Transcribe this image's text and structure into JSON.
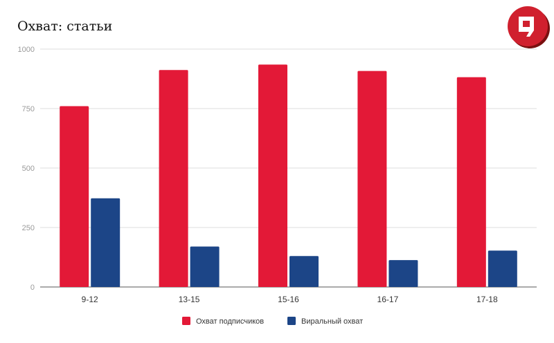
{
  "chart_data": {
    "type": "bar",
    "title": "Охват: статьи",
    "categories": [
      "9-12",
      "13-15",
      "15-16",
      "16-17",
      "17-18"
    ],
    "series": [
      {
        "name": "Охват подписчиков",
        "color": "#E31937",
        "values": [
          760,
          912,
          935,
          908,
          882
        ]
      },
      {
        "name": "Виральный охват",
        "color": "#1C4587",
        "values": [
          373,
          170,
          130,
          113,
          153
        ]
      }
    ],
    "yticks": [
      0,
      250,
      500,
      750,
      1000
    ],
    "ylim": [
      0,
      1000
    ],
    "grid": true,
    "legend": "bottom",
    "xlabel": "",
    "ylabel": ""
  },
  "logo": {
    "icon": "speech-bubble-logo-icon",
    "color": "#D0202E"
  }
}
